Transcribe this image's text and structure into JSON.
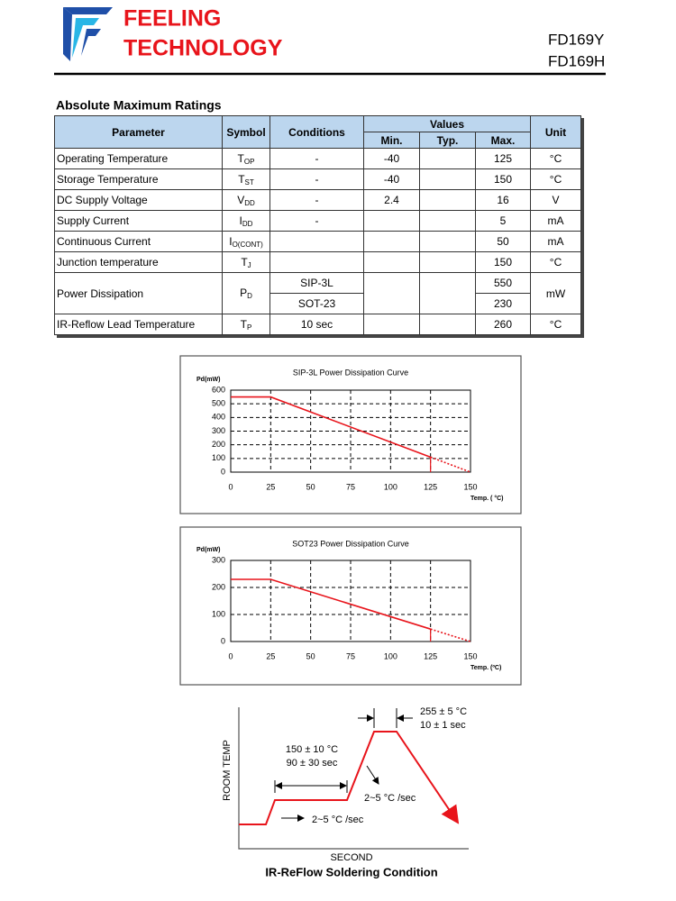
{
  "header": {
    "logo_line1": "FEELING",
    "logo_line2": "TECHNOLOGY",
    "part1": "FD169Y",
    "part2": "FD169H"
  },
  "section_title": "Absolute Maximum Ratings",
  "table": {
    "headers": {
      "parameter": "Parameter",
      "symbol": "Symbol",
      "conditions": "Conditions",
      "values": "Values",
      "min": "Min.",
      "typ": "Typ.",
      "max": "Max.",
      "unit": "Unit"
    },
    "rows": [
      {
        "parameter": "Operating Temperature",
        "symbol": {
          "main": "T",
          "sub": "OP"
        },
        "conditions": "-",
        "min": -40,
        "max": 125,
        "unit": "°C"
      },
      {
        "parameter": "Storage Temperature",
        "symbol": {
          "main": "T",
          "sub": "ST"
        },
        "conditions": "-",
        "min": -40,
        "max": 150,
        "unit": "°C"
      },
      {
        "parameter": "DC Supply Voltage",
        "symbol": {
          "main": "V",
          "sub": "DD"
        },
        "conditions": "-",
        "min": 2.4,
        "max": 16,
        "unit": "V"
      },
      {
        "parameter": "Supply Current",
        "symbol": {
          "main": "I",
          "sub": "DD"
        },
        "conditions": "-",
        "max": 5,
        "unit": "mA"
      },
      {
        "parameter": "Continuous Current",
        "symbol": {
          "main": "I",
          "sub": "O(CONT)"
        },
        "max": 50,
        "unit": "mA"
      },
      {
        "parameter": "Junction temperature",
        "symbol": {
          "main": "T",
          "sub": "J"
        },
        "max": 150,
        "unit": "°C"
      },
      {
        "parameter": "Power Dissipation",
        "symbol": {
          "main": "P",
          "sub": "D"
        },
        "variants": [
          {
            "conditions": "SIP-3L",
            "max": 550
          },
          {
            "conditions": "SOT-23",
            "max": 230
          }
        ],
        "unit": "mW"
      },
      {
        "parameter": "IR-Reflow Lead Temperature",
        "symbol": {
          "main": "T",
          "sub": "P"
        },
        "conditions": "10 sec",
        "max": 260,
        "unit": "°C"
      }
    ]
  },
  "chart_data": [
    {
      "type": "line",
      "title": "SIP-3L Power Dissipation Curve",
      "y_label": "Pd(mW)",
      "x_label": "Temp. ( °C)",
      "color": "#e8141b",
      "x": [
        0,
        25,
        125,
        150
      ],
      "values": [
        550,
        550,
        110,
        0
      ],
      "tail_style": "dotted",
      "grid": true,
      "xlim": [
        0,
        150
      ],
      "xticks": [
        0,
        25,
        50,
        75,
        100,
        125,
        150
      ],
      "ylim": [
        0,
        600
      ],
      "yticks": [
        0,
        100,
        200,
        300,
        400,
        500,
        600
      ]
    },
    {
      "type": "line",
      "title": "SOT23 Power Dissipation Curve",
      "y_label": "Pd(mW)",
      "x_label": "Temp. (ºC)",
      "color": "#e8141b",
      "x": [
        0,
        25,
        125,
        150
      ],
      "values": [
        230,
        230,
        46,
        0
      ],
      "tail_style": "dotted",
      "grid": true,
      "xlim": [
        0,
        150
      ],
      "xticks": [
        0,
        25,
        50,
        75,
        100,
        125,
        150
      ],
      "ylim": [
        0,
        300
      ],
      "yticks": [
        0,
        100,
        200,
        300
      ]
    }
  ],
  "reflow": {
    "peak_temp": "255 ± 5 °C",
    "peak_time": "10 ± 1 sec",
    "soak_temp": "150 ± 10 °C",
    "soak_time": "90 ± 30 sec",
    "ramp_up": "2~5 °C /sec",
    "ramp_down": "2~5 °C /sec",
    "y_label": "ROOM TEMP",
    "x_label": "SECOND",
    "caption": "IR-ReFlow Soldering Condition"
  }
}
